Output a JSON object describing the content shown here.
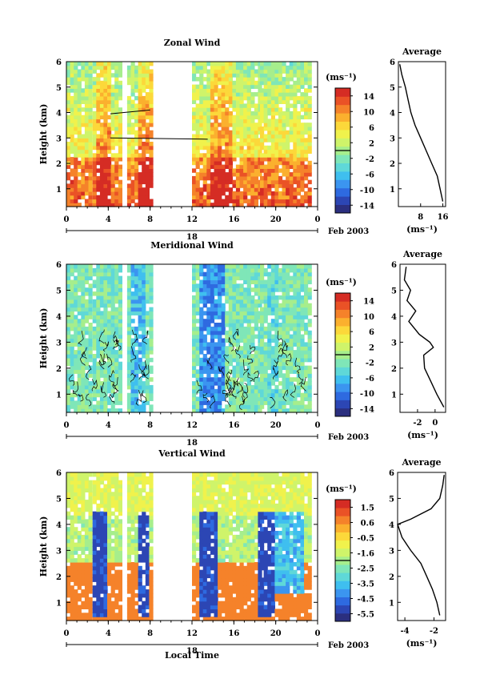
{
  "figure": {
    "xlabel": "Local Time",
    "day_label": "18",
    "month_label": "Feb 2003",
    "x_ticks": [
      "0",
      "4",
      "8",
      "12",
      "16",
      "20",
      "0"
    ],
    "y_label": "Height (km)",
    "y_ticks": [
      "1",
      "2",
      "3",
      "4",
      "5",
      "6"
    ],
    "unit_label": "(ms⁻¹)",
    "avg_title": "Average"
  },
  "colors": {
    "scale": [
      "#2b2f7f",
      "#2c46b4",
      "#2e6ae0",
      "#3b95f0",
      "#3fbfef",
      "#5fd8d8",
      "#7fe6b8",
      "#a6ee8c",
      "#cff46a",
      "#f0f24c",
      "#fcd83a",
      "#fbb02e",
      "#f5822a",
      "#ea5226",
      "#d52c24"
    ]
  },
  "chart_data": [
    {
      "type": "heatmap",
      "title": "Zonal Wind",
      "xlim": [
        0,
        24
      ],
      "ylim": [
        0.3,
        6
      ],
      "colorbar_ticks": [
        "14",
        "10",
        "6",
        "2",
        "-2",
        "-6",
        "-10",
        "-14"
      ],
      "colorbar_range": [
        -16,
        16
      ],
      "data_windows": [
        [
          0,
          2.2
        ],
        [
          2.5,
          5
        ],
        [
          5.8,
          8
        ],
        [
          12,
          16.2
        ],
        [
          16.2,
          18.5
        ],
        [
          18.5,
          23.2
        ]
      ],
      "profile": {
        "xlim": [
          0,
          17
        ],
        "x_ticks": [
          "8",
          "16"
        ],
        "xlabel": "(ms⁻¹)",
        "heights": [
          0.5,
          1,
          1.5,
          2,
          2.5,
          3,
          3.5,
          4,
          4.5,
          5,
          5.5,
          5.9
        ],
        "values": [
          16,
          15,
          14,
          12,
          10,
          8,
          6,
          4.5,
          3.5,
          2.5,
          1.2,
          0.5
        ]
      }
    },
    {
      "type": "heatmap",
      "title": "Meridional Wind",
      "xlim": [
        0,
        24
      ],
      "ylim": [
        0.3,
        6
      ],
      "colorbar_ticks": [
        "14",
        "10",
        "6",
        "2",
        "-2",
        "-6",
        "-10",
        "-14"
      ],
      "colorbar_range": [
        -16,
        16
      ],
      "data_windows": [
        [
          0,
          2.2
        ],
        [
          2.5,
          5
        ],
        [
          5.8,
          8
        ],
        [
          12,
          16.2
        ],
        [
          16.2,
          18.5
        ],
        [
          18.5,
          23.2
        ]
      ],
      "profile": {
        "xlim": [
          -4,
          1.2
        ],
        "x_ticks": [
          "-2",
          "0"
        ],
        "xlabel": "(ms⁻¹)",
        "heights": [
          0.5,
          1,
          1.5,
          2,
          2.5,
          2.8,
          3,
          3.3,
          3.8,
          4.2,
          4.6,
          5,
          5.4,
          5.9
        ],
        "values": [
          1.0,
          0.2,
          -0.5,
          -1.2,
          -1.3,
          -0.2,
          -0.6,
          -1.8,
          -3.0,
          -2.2,
          -3.2,
          -2.8,
          -3.5,
          -3.3
        ]
      }
    },
    {
      "type": "heatmap",
      "title": "Vertical Wind",
      "xlim": [
        0,
        24
      ],
      "ylim": [
        0.3,
        6
      ],
      "colorbar_ticks": [
        "1.5",
        "0.6",
        "-0.5",
        "-1.6",
        "-2.5",
        "-3.5",
        "-4.5",
        "-5.5"
      ],
      "colorbar_range": [
        -6,
        2
      ],
      "data_windows": [
        [
          0,
          2.2
        ],
        [
          2.5,
          5
        ],
        [
          5.8,
          8
        ],
        [
          12,
          16.2
        ],
        [
          16.2,
          18.5
        ],
        [
          18.5,
          23.2
        ]
      ],
      "profile": {
        "xlim": [
          -4.5,
          -1.2
        ],
        "x_ticks": [
          "-4",
          "-2"
        ],
        "xlabel": "(ms⁻¹)",
        "heights": [
          0.5,
          1,
          1.5,
          2,
          2.5,
          3,
          3.5,
          4,
          4.2,
          4.6,
          5,
          5.5,
          5.9
        ],
        "values": [
          -1.6,
          -1.8,
          -2.1,
          -2.5,
          -2.9,
          -3.6,
          -4.2,
          -4.5,
          -3.6,
          -2.2,
          -1.6,
          -1.4,
          -1.3
        ]
      }
    }
  ]
}
